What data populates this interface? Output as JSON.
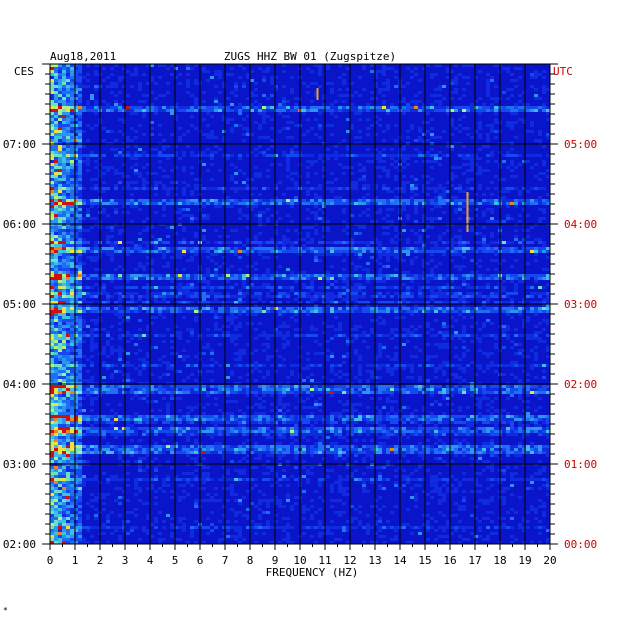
{
  "chart_data": {
    "type": "heatmap",
    "title": "ZUGS HHZ BW 01 (Zugspitze)",
    "date": "Aug18,2011",
    "xlabel": "FREQUENCY (HZ)",
    "xlim": [
      0,
      20
    ],
    "x_ticks": [
      0,
      1,
      2,
      3,
      4,
      5,
      6,
      7,
      8,
      9,
      10,
      11,
      12,
      13,
      14,
      15,
      16,
      17,
      18,
      19,
      20
    ],
    "left_axis_label": "CES",
    "right_axis_label": "UTC",
    "left_time_ticks": [
      "07:00",
      "06:00",
      "05:00",
      "04:00",
      "03:00",
      "02:00"
    ],
    "right_time_ticks": [
      "05:00",
      "04:00",
      "03:00",
      "02:00",
      "01:00",
      "00:00"
    ],
    "time_range_hours": [
      0,
      5.9
    ],
    "colors": {
      "background": "#0a14c8",
      "grid": "#000000",
      "utc": "#cc0000"
    },
    "strong_rows_hours_utc": [
      5.45,
      4.3,
      3.7,
      3.35,
      2.95,
      1.95,
      1.6,
      1.45,
      1.2
    ],
    "event_lines": [
      {
        "freq": 16.7,
        "from": 3.9,
        "to": 4.4
      },
      {
        "freq": 10.7,
        "from": 5.55,
        "to": 5.7
      }
    ],
    "corner_mark": "*"
  }
}
